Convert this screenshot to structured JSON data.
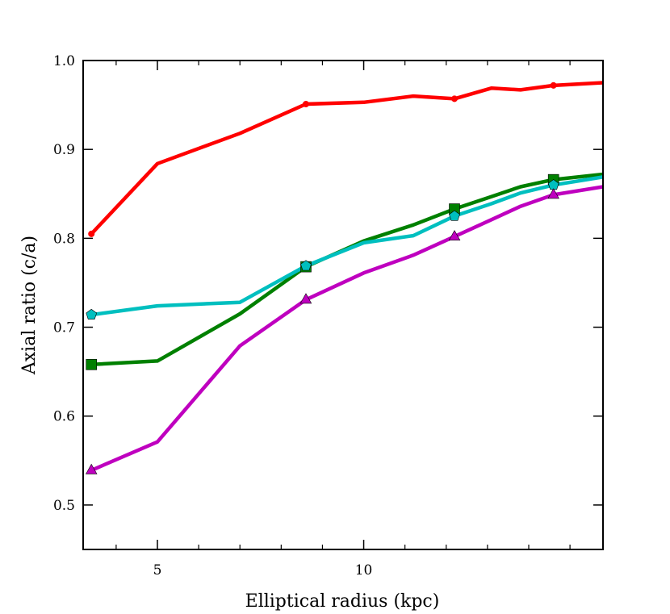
{
  "chart_data": {
    "type": "line",
    "title": "",
    "xlabel": "Elliptical radius (kpc)",
    "ylabel": "Axial ratio (c/a)",
    "xlim": [
      3.2,
      15.8
    ],
    "ylim": [
      0.45,
      1.0
    ],
    "x_major_ticks": [
      5,
      10
    ],
    "x_major_tick_labels": [
      "5",
      "10"
    ],
    "x_minor_ticks": [
      4,
      6,
      7,
      8,
      9,
      11,
      12,
      13,
      14,
      15
    ],
    "y_ticks": [
      0.5,
      0.6,
      0.7,
      0.8,
      0.9,
      1.0
    ],
    "y_tick_labels": [
      "0.5",
      "0.6",
      "0.7",
      "0.8",
      "0.9",
      "1.0"
    ],
    "grid": false,
    "legend": null,
    "series": [
      {
        "name": "red",
        "color": "#ff0000",
        "marker": "dot",
        "x": [
          3.4,
          5.0,
          7.0,
          8.6,
          10.0,
          11.2,
          12.2,
          13.1,
          13.8,
          14.6,
          15.8
        ],
        "y": [
          0.805,
          0.884,
          0.918,
          0.951,
          0.953,
          0.96,
          0.957,
          0.969,
          0.967,
          0.972,
          0.975
        ],
        "marker_idx": [
          0,
          3,
          6,
          9
        ]
      },
      {
        "name": "green",
        "color": "#008000",
        "marker": "square",
        "x": [
          3.4,
          5.0,
          7.0,
          8.6,
          10.0,
          11.2,
          12.2,
          13.1,
          13.8,
          14.6,
          15.8
        ],
        "y": [
          0.658,
          0.662,
          0.715,
          0.768,
          0.797,
          0.815,
          0.833,
          0.847,
          0.858,
          0.866,
          0.872
        ],
        "marker_idx": [
          0,
          3,
          6,
          9
        ]
      },
      {
        "name": "cyan",
        "color": "#00bfbf",
        "marker": "pentagon",
        "x": [
          3.4,
          5.0,
          7.0,
          8.6,
          10.0,
          11.2,
          12.2,
          13.1,
          13.8,
          14.6,
          15.8
        ],
        "y": [
          0.714,
          0.724,
          0.728,
          0.769,
          0.795,
          0.803,
          0.825,
          0.839,
          0.851,
          0.86,
          0.869
        ],
        "marker_idx": [
          0,
          3,
          6,
          9
        ]
      },
      {
        "name": "magenta",
        "color": "#bf00bf",
        "marker": "triangle",
        "x": [
          3.4,
          5.0,
          7.0,
          8.6,
          10.0,
          11.2,
          12.2,
          13.1,
          13.8,
          14.6,
          15.8
        ],
        "y": [
          0.539,
          0.571,
          0.679,
          0.731,
          0.761,
          0.781,
          0.802,
          0.821,
          0.836,
          0.849,
          0.858
        ],
        "marker_idx": [
          0,
          3,
          6,
          9
        ]
      }
    ]
  }
}
